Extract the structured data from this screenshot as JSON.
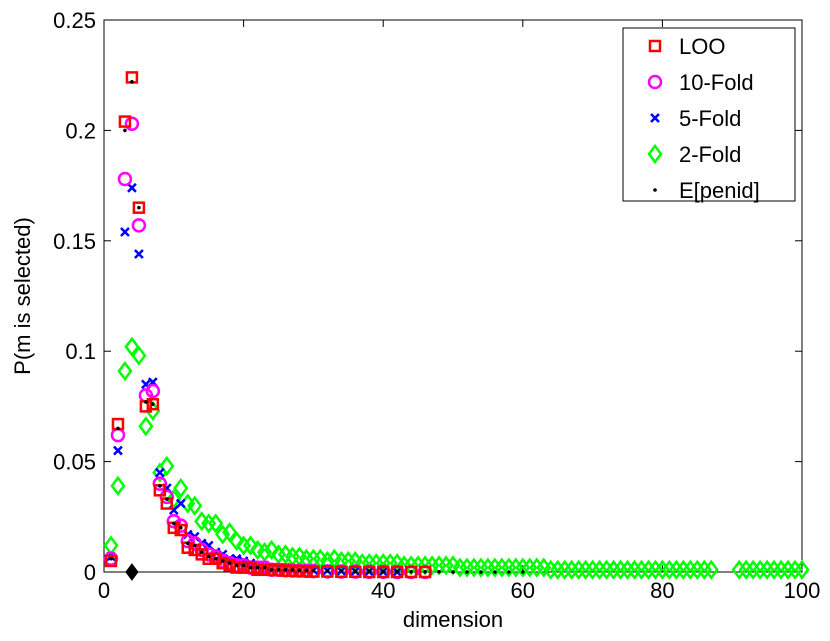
{
  "chart_data": {
    "type": "scatter",
    "xlabel": "dimension",
    "ylabel": "P(m is selected)",
    "xlim": [
      0,
      100
    ],
    "ylim": [
      0,
      0.25
    ],
    "xticks": [
      0,
      20,
      40,
      60,
      80,
      100
    ],
    "yticks": [
      0,
      0.05,
      0.1,
      0.15,
      0.2,
      0.25
    ],
    "ytick_labels": [
      "0",
      "0.05",
      "0.1",
      "0.15",
      "0.2",
      "0.25"
    ],
    "grid": false,
    "legend_position": "top-right",
    "series": [
      {
        "name": "LOO",
        "marker": "square",
        "color": "#ff0000",
        "x": [
          1,
          2,
          3,
          4,
          5,
          6,
          7,
          8,
          9,
          10,
          11,
          12,
          13,
          14,
          15,
          16,
          17,
          18,
          19,
          20,
          21,
          22,
          23,
          24,
          25,
          26,
          27,
          28,
          29,
          30,
          32,
          34,
          36,
          38,
          40,
          42,
          44,
          46
        ],
        "y": [
          0.005,
          0.067,
          0.204,
          0.224,
          0.165,
          0.075,
          0.076,
          0.037,
          0.031,
          0.02,
          0.019,
          0.011,
          0.01,
          0.008,
          0.006,
          0.006,
          0.004,
          0.003,
          0.002,
          0.002,
          0.002,
          0.001,
          0.001,
          0.001,
          0.0008,
          0.0006,
          0.0005,
          0.0004,
          0.0003,
          0.0002,
          0.0002,
          0.0001,
          0.0001,
          0,
          0,
          0,
          0,
          0
        ]
      },
      {
        "name": "10-Fold",
        "marker": "circle",
        "color": "#ff00ff",
        "x": [
          1,
          2,
          3,
          4,
          5,
          6,
          7,
          8,
          9,
          10,
          11,
          12,
          13,
          14,
          15,
          16,
          17,
          18,
          19,
          20,
          21,
          22,
          23,
          24,
          25,
          26,
          27,
          28,
          29,
          30,
          32,
          34,
          36,
          38,
          40,
          42,
          44,
          46
        ],
        "y": [
          0.006,
          0.062,
          0.178,
          0.203,
          0.157,
          0.08,
          0.082,
          0.04,
          0.034,
          0.023,
          0.021,
          0.014,
          0.013,
          0.01,
          0.008,
          0.007,
          0.005,
          0.004,
          0.003,
          0.003,
          0.002,
          0.002,
          0.002,
          0.001,
          0.001,
          0.0008,
          0.0007,
          0.0006,
          0.0005,
          0.0004,
          0.0003,
          0.0002,
          0.0002,
          0.0001,
          0.0001,
          0,
          0,
          0
        ]
      },
      {
        "name": "5-Fold",
        "marker": "x",
        "color": "#0000ff",
        "x": [
          1,
          2,
          3,
          4,
          5,
          6,
          7,
          8,
          9,
          10,
          11,
          12,
          13,
          14,
          15,
          16,
          17,
          18,
          19,
          20,
          21,
          22,
          23,
          24,
          25,
          26,
          27,
          28,
          29,
          30,
          32,
          34,
          36,
          38,
          40,
          42
        ],
        "y": [
          0.007,
          0.055,
          0.154,
          0.174,
          0.144,
          0.085,
          0.086,
          0.045,
          0.038,
          0.028,
          0.031,
          0.017,
          0.016,
          0.013,
          0.012,
          0.009,
          0.008,
          0.006,
          0.006,
          0.005,
          0.004,
          0.003,
          0.003,
          0.002,
          0.002,
          0.002,
          0.0015,
          0.001,
          0.001,
          0.0008,
          0.0006,
          0.0004,
          0.0003,
          0.0002,
          0.0001,
          0
        ]
      },
      {
        "name": "2-Fold",
        "marker": "diamond",
        "color": "#00ff00",
        "x": [
          1,
          2,
          3,
          4,
          5,
          6,
          7,
          8,
          9,
          10,
          11,
          12,
          13,
          14,
          15,
          16,
          17,
          18,
          19,
          20,
          21,
          22,
          23,
          24,
          25,
          26,
          27,
          28,
          29,
          30,
          31,
          32,
          33,
          34,
          35,
          36,
          37,
          38,
          39,
          40,
          41,
          42,
          43,
          44,
          45,
          46,
          47,
          48,
          49,
          50,
          51,
          52,
          53,
          54,
          55,
          56,
          57,
          58,
          59,
          60,
          61,
          62,
          63,
          64,
          65,
          66,
          67,
          68,
          69,
          70,
          71,
          72,
          73,
          74,
          75,
          76,
          77,
          78,
          79,
          80,
          81,
          82,
          83,
          84,
          85,
          86,
          87,
          91,
          92,
          93,
          94,
          95,
          96,
          97,
          98,
          99,
          100
        ],
        "y": [
          0.012,
          0.039,
          0.091,
          0.102,
          0.098,
          0.066,
          0.073,
          0.045,
          0.048,
          0.033,
          0.038,
          0.031,
          0.03,
          0.023,
          0.022,
          0.022,
          0.017,
          0.018,
          0.014,
          0.012,
          0.012,
          0.01,
          0.009,
          0.01,
          0.008,
          0.008,
          0.007,
          0.007,
          0.006,
          0.006,
          0.006,
          0.005,
          0.006,
          0.005,
          0.005,
          0.005,
          0.004,
          0.004,
          0.004,
          0.004,
          0.004,
          0.004,
          0.003,
          0.003,
          0.003,
          0.003,
          0.003,
          0.003,
          0.003,
          0.003,
          0.002,
          0.002,
          0.002,
          0.002,
          0.002,
          0.002,
          0.002,
          0.002,
          0.002,
          0.002,
          0.002,
          0.002,
          0.002,
          0.001,
          0.001,
          0.001,
          0.001,
          0.001,
          0.001,
          0.001,
          0.001,
          0.001,
          0.001,
          0.001,
          0.001,
          0.001,
          0.001,
          0.001,
          0.001,
          0.001,
          0.001,
          0.001,
          0.001,
          0.001,
          0.001,
          0.001,
          0.001,
          0.001,
          0.001,
          0.001,
          0.001,
          0.001,
          0.001,
          0.001,
          0.001,
          0.001,
          0.001
        ]
      },
      {
        "name": "E[penid]",
        "marker": "dot",
        "color": "#000000",
        "x": [
          1,
          2,
          3,
          4,
          5,
          6,
          7,
          8,
          9,
          10,
          11,
          12,
          13,
          14,
          15,
          16,
          17,
          18,
          19,
          20,
          21,
          22,
          23,
          24,
          25,
          26,
          27,
          28,
          29,
          30,
          32,
          34,
          36,
          38,
          40,
          42,
          44,
          46,
          48,
          50,
          52,
          54,
          56,
          58,
          60
        ],
        "y": [
          0.006,
          0.065,
          0.2,
          0.222,
          0.165,
          0.077,
          0.076,
          0.039,
          0.033,
          0.022,
          0.02,
          0.013,
          0.012,
          0.009,
          0.007,
          0.006,
          0.005,
          0.004,
          0.003,
          0.003,
          0.002,
          0.002,
          0.002,
          0.001,
          0.001,
          0.001,
          0.001,
          0.0008,
          0.0007,
          0.0006,
          0.0005,
          0.0004,
          0.0003,
          0.0003,
          0.0002,
          0.0002,
          0.0001,
          0.0001,
          0.0001,
          0,
          0,
          0,
          0,
          0,
          0
        ]
      }
    ],
    "annotation_marker": {
      "marker": "filled-diamond",
      "color": "#000000",
      "x": 4,
      "y": 0
    }
  }
}
